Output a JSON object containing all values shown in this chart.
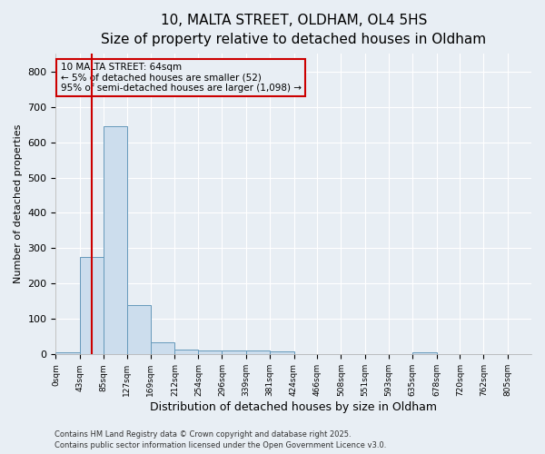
{
  "title_line1": "10, MALTA STREET, OLDHAM, OL4 5HS",
  "title_line2": "Size of property relative to detached houses in Oldham",
  "xlabel": "Distribution of detached houses by size in Oldham",
  "ylabel": "Number of detached properties",
  "bar_edges": [
    0,
    43,
    85,
    127,
    169,
    212,
    254,
    296,
    339,
    381,
    424,
    466,
    508,
    551,
    593,
    635,
    678,
    720,
    762,
    805,
    847
  ],
  "bar_heights": [
    7,
    275,
    645,
    140,
    35,
    15,
    12,
    10,
    10,
    8,
    0,
    0,
    0,
    0,
    0,
    5,
    0,
    0,
    0,
    0
  ],
  "bar_color": "#ccdded",
  "bar_edgecolor": "#6699bb",
  "vline_x": 64,
  "vline_color": "#cc0000",
  "annotation_text": "10 MALTA STREET: 64sqm\n← 5% of detached houses are smaller (52)\n95% of semi-detached houses are larger (1,098) →",
  "annotation_box_color": "#cc0000",
  "ylim": [
    0,
    850
  ],
  "yticks": [
    0,
    100,
    200,
    300,
    400,
    500,
    600,
    700,
    800
  ],
  "footer_line1": "Contains HM Land Registry data © Crown copyright and database right 2025.",
  "footer_line2": "Contains public sector information licensed under the Open Government Licence v3.0.",
  "bg_color": "#e8eef4",
  "plot_bg_color": "#e8eef4",
  "grid_color": "#ffffff",
  "tick_label_fontsize": 6.5,
  "title1_fontsize": 11,
  "title2_fontsize": 9,
  "ylabel_fontsize": 8,
  "xlabel_fontsize": 9
}
